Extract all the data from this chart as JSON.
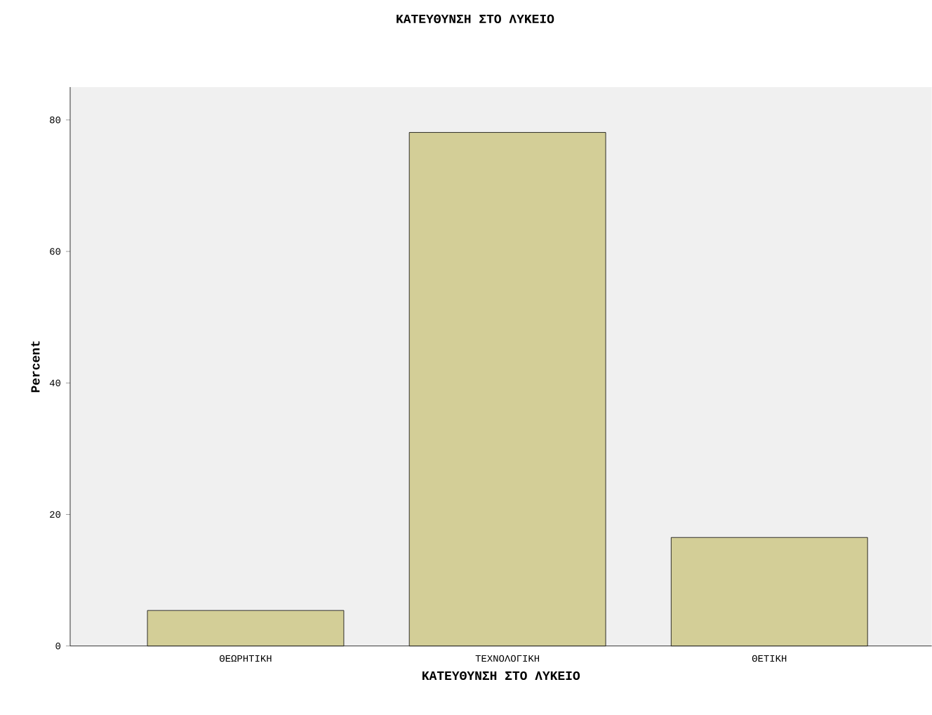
{
  "chart_data": {
    "type": "bar",
    "title": "ΚΑΤΕΥΘΥΝΣΗ ΣΤΟ ΛΥΚΕΙΟ",
    "xlabel": "ΚΑΤΕΥΘΥΝΣΗ ΣΤΟ ΛΥΚΕΙΟ",
    "ylabel": "Percent",
    "categories": [
      "ΘΕΩΡΗΤΙΚΗ",
      "ΤΕΧΝΟΛΟΓΙΚΗ",
      "ΘΕΤΙΚΗ"
    ],
    "values": [
      5.4,
      78.1,
      16.5
    ],
    "color": "#d3ce97",
    "ylim": [
      0,
      85
    ],
    "yticks": [
      0,
      20,
      40,
      60,
      80
    ],
    "grid": false
  }
}
